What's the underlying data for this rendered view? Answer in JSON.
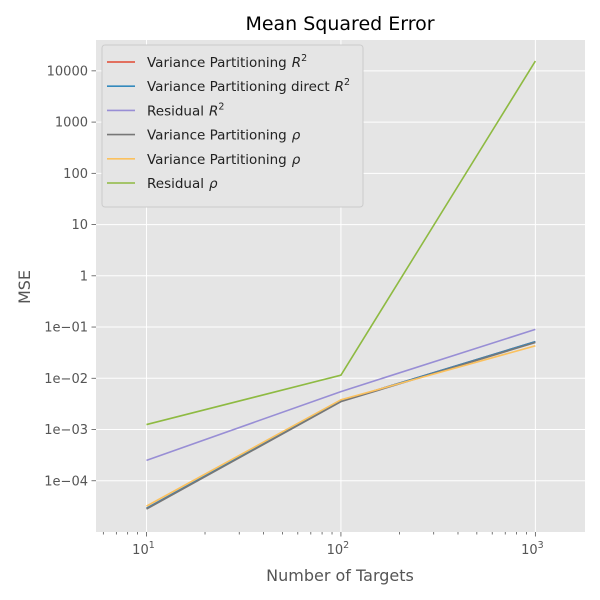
{
  "chart_data": {
    "type": "line",
    "title": "Mean Squared Error",
    "xlabel": "Number of Targets",
    "ylabel": "MSE",
    "x_scale": "log",
    "y_scale": "log",
    "xlim": [
      5.5,
      1800
    ],
    "ylim": [
      1e-05,
      40000
    ],
    "grid": true,
    "legend_position": "top-left",
    "x": [
      10,
      100,
      1000
    ],
    "x_ticks": [
      {
        "value": 10,
        "base": "10",
        "exp": "1"
      },
      {
        "value": 100,
        "base": "10",
        "exp": "2"
      },
      {
        "value": 1000,
        "base": "10",
        "exp": "3"
      }
    ],
    "y_ticks": [
      {
        "value": 0.0001,
        "label": "1e−04"
      },
      {
        "value": 0.001,
        "label": "1e−03"
      },
      {
        "value": 0.01,
        "label": "1e−02"
      },
      {
        "value": 0.1,
        "label": "1e−01"
      },
      {
        "value": 1,
        "label": "1"
      },
      {
        "value": 10,
        "label": "10"
      },
      {
        "value": 100,
        "label": "100"
      },
      {
        "value": 1000,
        "label": "1000"
      },
      {
        "value": 10000,
        "label": "10000"
      }
    ],
    "series": [
      {
        "name": "Variance Partitioning",
        "symbol": "R",
        "sup": "2",
        "color": "#E24A33",
        "values": [
          2.9e-05,
          0.0036,
          0.052
        ]
      },
      {
        "name": "Variance Partitioning direct",
        "symbol": "R",
        "sup": "2",
        "color": "#348ABD",
        "values": [
          2.9e-05,
          0.0036,
          0.052
        ]
      },
      {
        "name": "Residual",
        "symbol": "R",
        "sup": "2",
        "color": "#988ED5",
        "values": [
          0.00025,
          0.0055,
          0.09
        ]
      },
      {
        "name": "Variance Partitioning",
        "symbol": "ρ",
        "sup": "",
        "color": "#777777",
        "values": [
          2.8e-05,
          0.0035,
          0.05
        ]
      },
      {
        "name": "Variance Partitioning",
        "symbol": "ρ",
        "sup": "",
        "color": "#FBC15E",
        "values": [
          3.2e-05,
          0.0038,
          0.043
        ]
      },
      {
        "name": "Residual",
        "symbol": "ρ",
        "sup": "",
        "color": "#8EBA42",
        "values": [
          0.00125,
          0.0115,
          15500
        ]
      }
    ]
  },
  "style": {
    "plot_background": "#E5E5E5",
    "grid_color": "#FFFFFF",
    "legend_background": "#E5E5E5",
    "legend_border": "#CCCCCC"
  }
}
